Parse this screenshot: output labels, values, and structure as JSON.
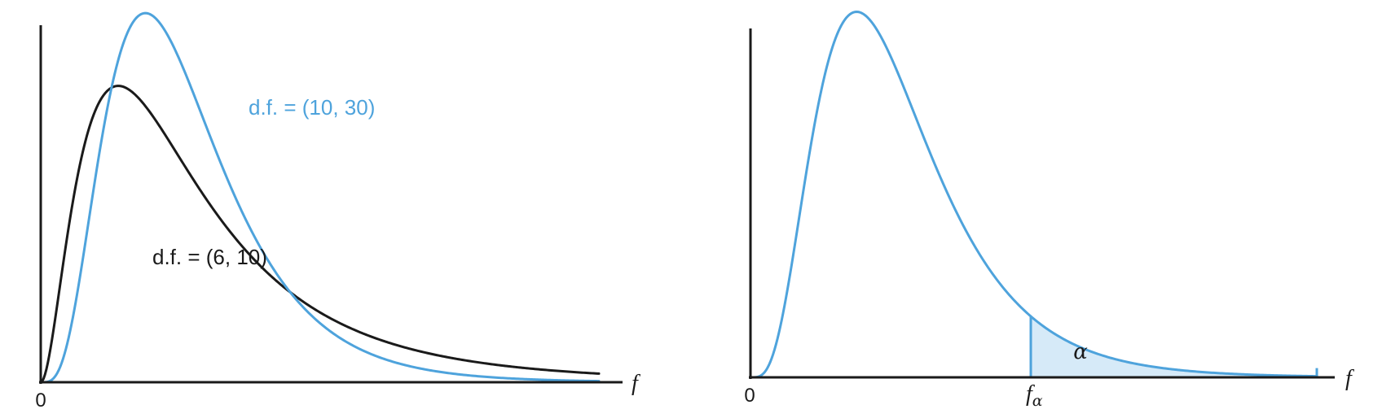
{
  "chart_data": [
    {
      "type": "line",
      "title": "",
      "xlabel": "f",
      "ylabel": "",
      "x_tick_labels": [
        "0"
      ],
      "xlim": [
        0,
        4
      ],
      "grid": false,
      "legend": "none",
      "series": [
        {
          "name": "d.f. = (10, 30)",
          "color": "#4ea3dc",
          "df1": 10,
          "df2": 30,
          "x": [
            0,
            0.25,
            0.5,
            0.75,
            1.0,
            1.25,
            1.5,
            2.0,
            2.5,
            3.0,
            3.5,
            4.0
          ],
          "y": [
            0,
            0.085,
            0.54,
            0.78,
            0.68,
            0.47,
            0.29,
            0.096,
            0.031,
            0.01,
            0.003,
            0.001
          ]
        },
        {
          "name": "d.f. = (6, 10)",
          "color": "#1a1a1a",
          "df1": 6,
          "df2": 10,
          "x": [
            0,
            0.25,
            0.5,
            0.75,
            1.0,
            1.25,
            1.5,
            2.0,
            2.5,
            3.0,
            3.5,
            4.0
          ],
          "y": [
            0,
            0.38,
            0.63,
            0.62,
            0.52,
            0.4,
            0.3,
            0.17,
            0.1,
            0.06,
            0.035,
            0.022
          ]
        }
      ]
    },
    {
      "type": "area",
      "title": "",
      "xlabel": "f",
      "ylabel": "",
      "x_tick_labels": [
        "0"
      ],
      "xlim": [
        0,
        4
      ],
      "grid": false,
      "legend": "none",
      "critical_label": "f",
      "critical_subscript": "α",
      "shaded_label": "α",
      "shaded_region": "right tail beyond f_α",
      "series": [
        {
          "name": "",
          "color": "#4ea3dc",
          "fill_color": "#d6eaf8",
          "df1": 10,
          "df2": 30,
          "x": [
            0,
            0.25,
            0.5,
            0.75,
            1.0,
            1.25,
            1.5,
            2.0,
            2.5,
            3.0,
            3.5,
            4.0
          ],
          "y": [
            0,
            0.085,
            0.54,
            0.78,
            0.68,
            0.47,
            0.29,
            0.096,
            0.031,
            0.01,
            0.003,
            0.001
          ]
        }
      ]
    }
  ]
}
